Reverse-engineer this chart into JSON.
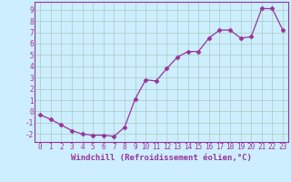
{
  "x": [
    0,
    1,
    2,
    3,
    4,
    5,
    6,
    7,
    8,
    9,
    10,
    11,
    12,
    13,
    14,
    15,
    16,
    17,
    18,
    19,
    20,
    21,
    22,
    23
  ],
  "y": [
    -0.3,
    -0.7,
    -1.2,
    -1.7,
    -2.0,
    -2.1,
    -2.1,
    -2.2,
    -1.4,
    1.1,
    2.8,
    2.7,
    3.8,
    4.8,
    5.3,
    5.3,
    6.5,
    7.2,
    7.2,
    6.5,
    6.6,
    9.1,
    9.1,
    7.2
  ],
  "line_color": "#993399",
  "marker": "D",
  "marker_size": 2.5,
  "bg_color": "#cceeff",
  "grid_color": "#aaccbb",
  "xlabel": "Windchill (Refroidissement éolien,°C)",
  "xlim": [
    -0.5,
    23.5
  ],
  "ylim": [
    -2.7,
    9.7
  ],
  "xticks": [
    0,
    1,
    2,
    3,
    4,
    5,
    6,
    7,
    8,
    9,
    10,
    11,
    12,
    13,
    14,
    15,
    16,
    17,
    18,
    19,
    20,
    21,
    22,
    23
  ],
  "yticks": [
    -2,
    -1,
    0,
    1,
    2,
    3,
    4,
    5,
    6,
    7,
    8,
    9
  ],
  "tick_color": "#993399",
  "label_color": "#993399",
  "tick_fontsize": 5.5,
  "xlabel_fontsize": 6.5
}
